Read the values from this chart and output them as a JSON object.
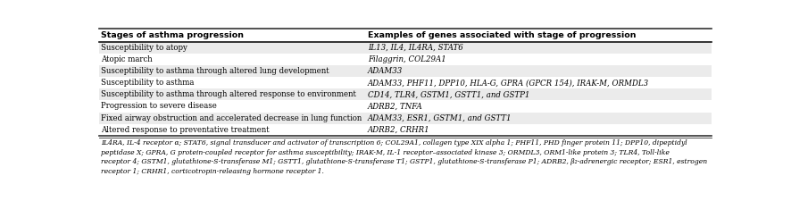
{
  "header": [
    "Stages of asthma progression",
    "Examples of genes associated with stage of progression"
  ],
  "rows": [
    [
      "Susceptibility to atopy",
      "IL13, IL4, IL4RA, STAT6"
    ],
    [
      "Atopic march",
      "Filaggrin, COL29A1"
    ],
    [
      "Susceptibility to asthma through altered lung development",
      "ADAM33"
    ],
    [
      "Susceptibility to asthma",
      "ADAM33, PHF11, DPP10, HLA-G, GPRA (GPCR 154), IRAK-M, ORMDL3"
    ],
    [
      "Susceptibility to asthma through altered response to environment",
      "CD14, TLR4, GSTM1, GSTT1, and GSTP1"
    ],
    [
      "Progression to severe disease",
      "ADRB2, TNFA"
    ],
    [
      "Fixed airway obstruction and accelerated decrease in lung function",
      "ADAM33, ESR1, GSTM1, and GSTT1"
    ],
    [
      "Altered response to preventative treatment",
      "ADRB2, CRHR1"
    ]
  ],
  "footnote_lines": [
    "IL4RA, IL-4 receptor α; STAT6, signal transducer and activator of transcription 6; COL29A1, collagen type XIX alpha 1; PHF11, PHD finger protein 11; DPP10, dipeptidyl",
    "peptidase X; GPRA, G protein-coupled receptor for asthma susceptibility; IRAK-M, IL-1 receptor–associated kinase 3; ORMDL3, ORM1-like protein 3; TLR4, Toll-like",
    "receptor 4; GSTM1, glutathione-S-transferase M1; GSTT1, glutathione-S-transferase T1; GSTP1, glutathione-S-transferase P1; ADRB2, β₂-adrenergic receptor; ESR1, estrogen",
    "receptor 1; CRHR1, corticotropin-releasing hormone receptor 1."
  ],
  "col_split": 0.435,
  "bg_color_header": "#ffffff",
  "bg_color_odd": "#ebebeb",
  "bg_color_even": "#ffffff",
  "border_color": "#333333",
  "header_line_color": "#111111",
  "text_color": "#000000",
  "header_fontsize": 6.8,
  "body_fontsize": 6.2,
  "footnote_fontsize": 5.5,
  "fig_width": 8.86,
  "fig_height": 2.44,
  "dpi": 100
}
